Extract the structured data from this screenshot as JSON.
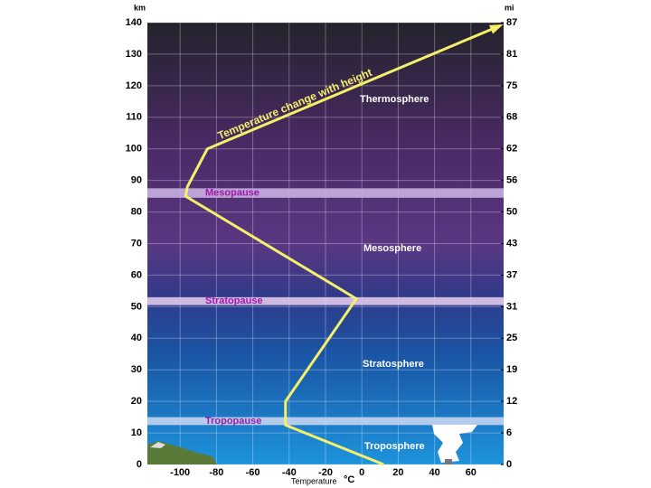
{
  "chart_data": {
    "type": "line",
    "annotation": "Temperature change with height",
    "y_label": "km",
    "y2_label": "mi",
    "x_label": "Temperature",
    "x_unit": "°C",
    "x": [
      12,
      -42,
      -42,
      -3,
      -97,
      -96,
      -85,
      76
    ],
    "values": [
      0,
      12.5,
      20,
      52.5,
      85,
      88,
      100,
      139
    ],
    "color": "#f5f06a",
    "xlim": [
      -118,
      78
    ],
    "xticks": [
      -100,
      -80,
      -60,
      -40,
      -20,
      0,
      20,
      40,
      60
    ],
    "ylim": [
      0,
      140
    ],
    "yticks": [
      0,
      10,
      20,
      30,
      40,
      50,
      60,
      70,
      80,
      90,
      100,
      110,
      120,
      130,
      140
    ],
    "y2lim": [
      0,
      87
    ],
    "y2ticks": [
      0,
      {
        "value": 6.21,
        "label": "6"
      },
      {
        "value": 12.43,
        "label": "12"
      },
      {
        "value": 18.64,
        "label": "19"
      },
      {
        "value": 24.85,
        "label": "25"
      },
      {
        "value": 31.07,
        "label": "31"
      },
      {
        "value": 37.28,
        "label": "37"
      },
      {
        "value": 43.496,
        "label": "43"
      },
      {
        "value": 49.71,
        "label": "50"
      },
      {
        "value": 55.92,
        "label": "56"
      },
      {
        "value": 62.14,
        "label": "62"
      },
      {
        "value": 68.35,
        "label": "68"
      },
      {
        "value": 74.56,
        "label": "75"
      },
      {
        "value": 80.78,
        "label": "81"
      },
      87
    ],
    "grid": true,
    "boundaries": [
      {
        "label": "Mesopause",
        "range": [
          84.5,
          87.5
        ],
        "color": "#c7b0e2"
      },
      {
        "label": "Stratopause",
        "range": [
          50.5,
          53
        ],
        "color": "#e2c8ea"
      },
      {
        "label": "Tropopause",
        "range": [
          12.5,
          15
        ],
        "color": "#c4d5ee"
      }
    ],
    "layers": [
      "Thermosphere",
      "Mesosphere",
      "Stratosphere",
      "Troposphere"
    ]
  }
}
